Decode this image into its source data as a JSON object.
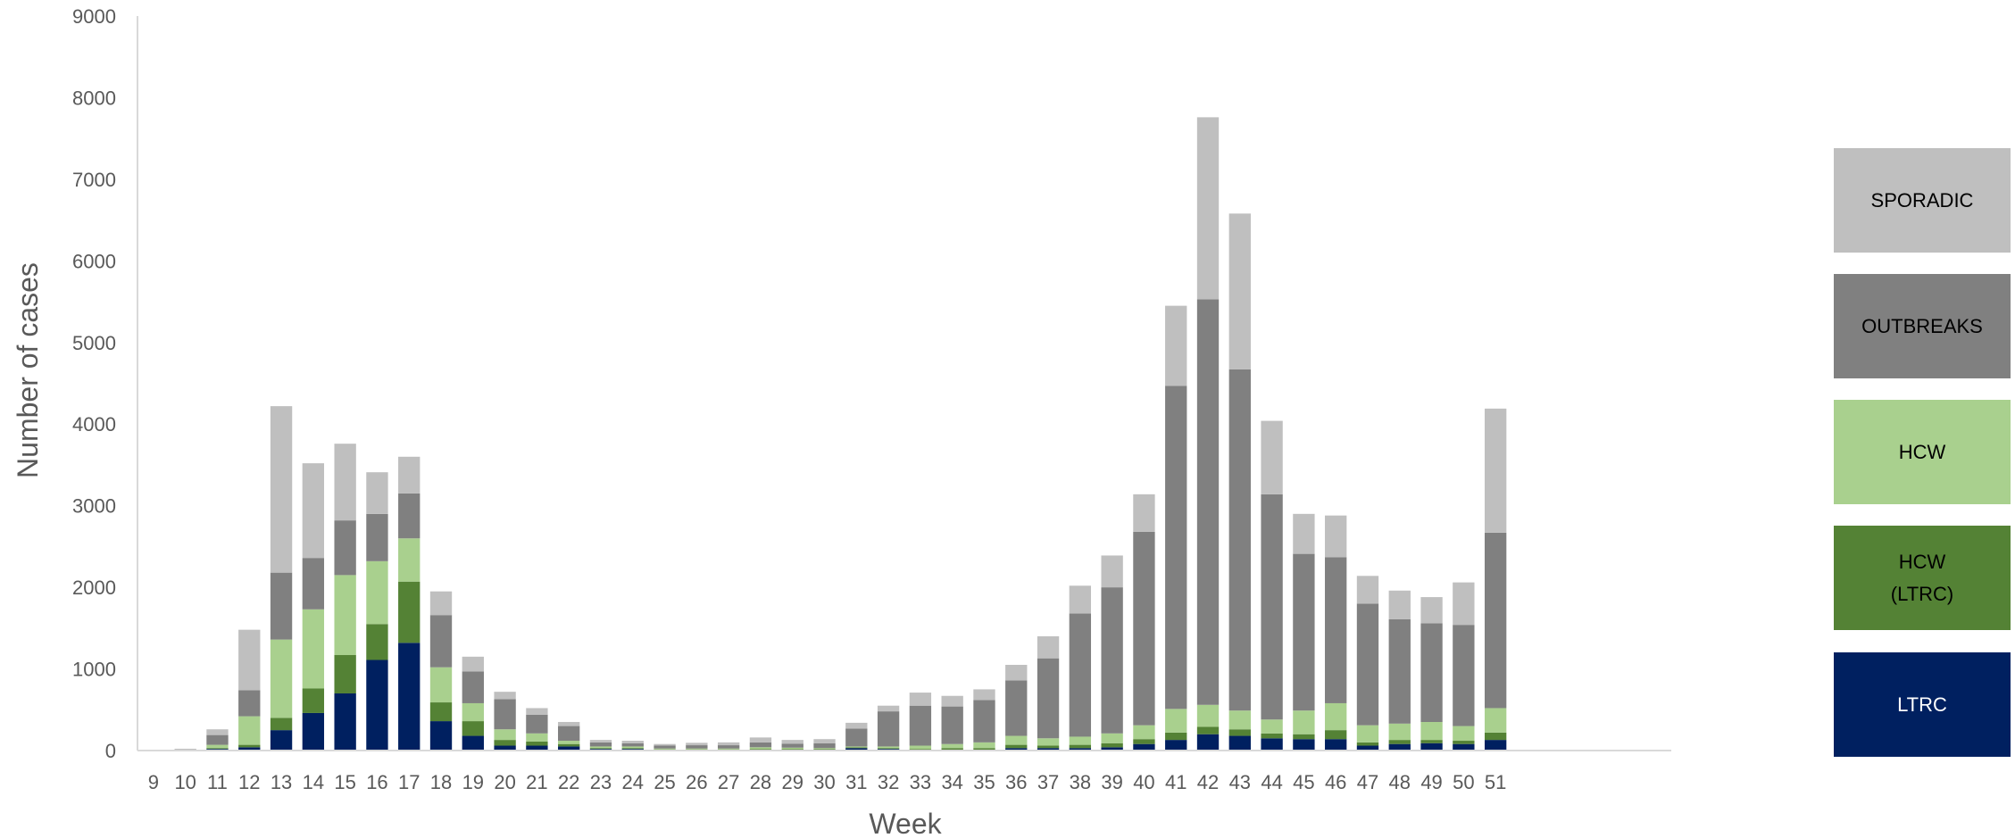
{
  "chart_data": {
    "type": "bar",
    "stacked": true,
    "xlabel": "Week",
    "ylabel": "Number of cases",
    "ylim": [
      0,
      9000
    ],
    "ytick_step": 1000,
    "grid": false,
    "legend_position": "right",
    "categories": [
      "9",
      "10",
      "11",
      "12",
      "13",
      "14",
      "15",
      "16",
      "17",
      "18",
      "19",
      "20",
      "21",
      "22",
      "23",
      "24",
      "25",
      "26",
      "27",
      "28",
      "29",
      "30",
      "31",
      "32",
      "33",
      "34",
      "35",
      "36",
      "37",
      "38",
      "39",
      "40",
      "41",
      "42",
      "43",
      "44",
      "45",
      "46",
      "47",
      "48",
      "49",
      "50",
      "51"
    ],
    "extra_empty_slots": 5,
    "series": [
      {
        "name": "LTRC",
        "color": "#002060",
        "values": [
          0,
          5,
          20,
          40,
          250,
          460,
          700,
          1110,
          1320,
          360,
          180,
          60,
          60,
          50,
          20,
          20,
          10,
          10,
          10,
          10,
          10,
          10,
          30,
          20,
          10,
          10,
          10,
          30,
          30,
          30,
          40,
          80,
          130,
          200,
          180,
          150,
          140,
          140,
          60,
          80,
          90,
          80,
          130
        ]
      },
      {
        "name": "HCW\n(LTRC)",
        "color": "#548235",
        "values": [
          0,
          0,
          10,
          30,
          150,
          300,
          470,
          440,
          750,
          230,
          180,
          70,
          50,
          30,
          10,
          10,
          5,
          5,
          5,
          10,
          10,
          10,
          10,
          10,
          10,
          20,
          20,
          40,
          30,
          40,
          50,
          60,
          90,
          90,
          80,
          60,
          60,
          110,
          40,
          50,
          40,
          40,
          90
        ]
      },
      {
        "name": "HCW",
        "color": "#A9D08E",
        "values": [
          0,
          5,
          40,
          350,
          960,
          970,
          980,
          770,
          530,
          430,
          220,
          130,
          100,
          40,
          20,
          20,
          10,
          10,
          10,
          20,
          15,
          10,
          10,
          20,
          40,
          50,
          70,
          110,
          90,
          100,
          120,
          170,
          290,
          270,
          230,
          170,
          290,
          330,
          210,
          200,
          220,
          180,
          300
        ]
      },
      {
        "name": "OUTBREAKS",
        "color": "#808080",
        "values": [
          0,
          5,
          120,
          320,
          820,
          630,
          670,
          580,
          550,
          640,
          390,
          370,
          230,
          180,
          50,
          40,
          35,
          40,
          40,
          60,
          50,
          60,
          220,
          430,
          490,
          460,
          520,
          680,
          980,
          1510,
          1790,
          2370,
          3960,
          4970,
          4180,
          2760,
          1920,
          1790,
          1490,
          1280,
          1210,
          1240,
          2150
        ]
      },
      {
        "name": "SPORADIC",
        "color": "#BFBFBF",
        "values": [
          0,
          5,
          70,
          740,
          2040,
          1160,
          940,
          510,
          450,
          290,
          180,
          90,
          80,
          50,
          30,
          30,
          20,
          30,
          35,
          60,
          45,
          50,
          70,
          70,
          160,
          130,
          130,
          190,
          270,
          340,
          390,
          460,
          980,
          2230,
          1910,
          900,
          490,
          510,
          340,
          350,
          320,
          520,
          1520
        ]
      }
    ]
  }
}
